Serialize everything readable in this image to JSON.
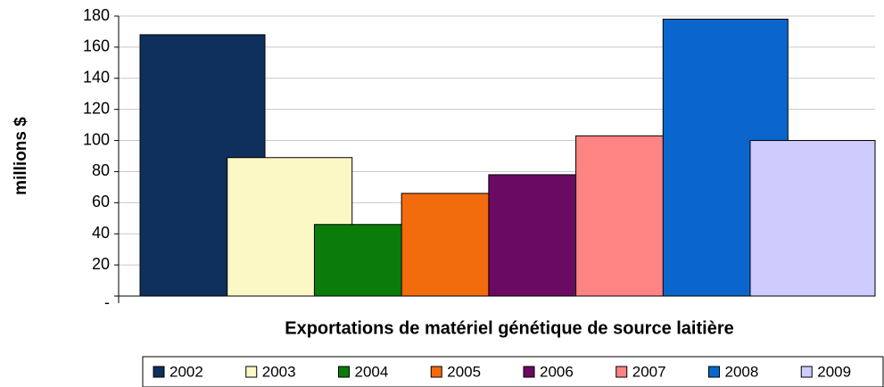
{
  "chart_data": {
    "type": "bar",
    "ylabel": "millions $",
    "xlabel": "Exportations de matériel génétique de source laitière",
    "categories": [
      "2002",
      "2003",
      "2004",
      "2005",
      "2006",
      "2007",
      "2008",
      "2009"
    ],
    "values": [
      168,
      89,
      46,
      66,
      78,
      103,
      178,
      100
    ],
    "colors": [
      "#0f2f5c",
      "#fbf8c6",
      "#0a7c0a",
      "#f26b0c",
      "#6a0a62",
      "#fe8383",
      "#0a66cc",
      "#cdccfc"
    ],
    "ylim": [
      0,
      180
    ],
    "yticks": [
      {
        "value": 0,
        "label": "-"
      },
      20,
      40,
      60,
      80,
      100,
      120,
      140,
      160,
      180
    ],
    "grid": true,
    "legend": "bottom"
  }
}
